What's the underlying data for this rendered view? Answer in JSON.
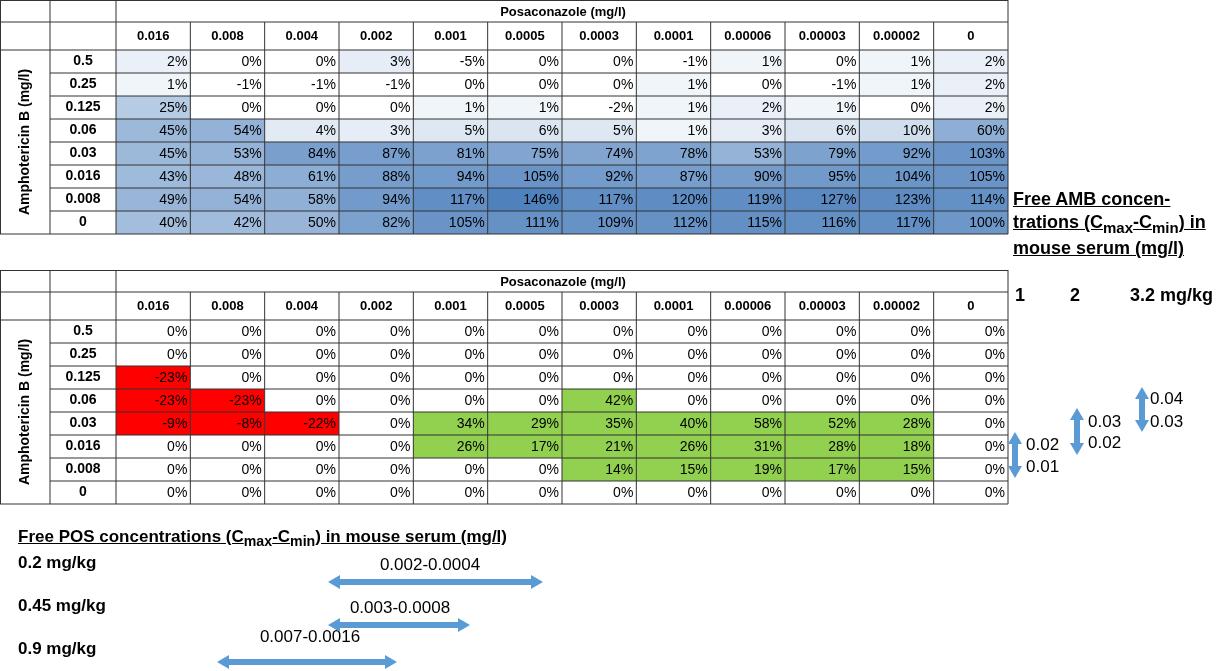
{
  "chart_data": [
    {
      "type": "heatmap",
      "xlabel": "Posaconazole (mg/l)",
      "ylabel": "Amphotericin B (mg/l)",
      "colors": [
        "#4f81bd"
      ],
      "categories": [
        "0.016",
        "0.008",
        "0.004",
        "0.002",
        "0.001",
        "0.0005",
        "0.0003",
        "0.0001",
        "0.00006",
        "0.00003",
        "0.00002",
        "0"
      ],
      "y_categories": [
        "0.5",
        "0.25",
        "0.125",
        "0.06",
        "0.03",
        "0.016",
        "0.008",
        "0"
      ],
      "cells": [
        [
          2,
          0,
          0,
          3,
          -5,
          0,
          0,
          -1,
          1,
          0,
          1,
          2
        ],
        [
          1,
          -1,
          -1,
          -1,
          0,
          0,
          0,
          1,
          0,
          -1,
          1,
          2
        ],
        [
          25,
          0,
          0,
          0,
          1,
          1,
          -2,
          1,
          2,
          1,
          0,
          2
        ],
        [
          45,
          54,
          4,
          3,
          5,
          6,
          5,
          1,
          3,
          6,
          10,
          60
        ],
        [
          45,
          53,
          84,
          87,
          81,
          75,
          74,
          78,
          53,
          79,
          92,
          103
        ],
        [
          43,
          48,
          61,
          88,
          94,
          105,
          92,
          87,
          90,
          95,
          104,
          105
        ],
        [
          49,
          54,
          58,
          94,
          117,
          146,
          117,
          120,
          119,
          127,
          123,
          114
        ],
        [
          40,
          42,
          50,
          82,
          105,
          111,
          109,
          112,
          115,
          116,
          117,
          100
        ]
      ],
      "cell_labels": [
        [
          "2%",
          "0%",
          "0%",
          "3%",
          "-5%",
          "0%",
          "0%",
          "-1%",
          "1%",
          "0%",
          "1%",
          "2%"
        ],
        [
          "1%",
          "-1%",
          "-1%",
          "-1%",
          "0%",
          "0%",
          "0%",
          "1%",
          "0%",
          "-1%",
          "1%",
          "2%"
        ],
        [
          "25%",
          "0%",
          "0%",
          "0%",
          "1%",
          "1%",
          "-2%",
          "1%",
          "2%",
          "1%",
          "0%",
          "2%"
        ],
        [
          "45%",
          "54%",
          "4%",
          "3%",
          "5%",
          "6%",
          "5%",
          "1%",
          "3%",
          "6%",
          "10%",
          "60%"
        ],
        [
          "45%",
          "53%",
          "84%",
          "87%",
          "81%",
          "75%",
          "74%",
          "78%",
          "53%",
          "79%",
          "92%",
          "103%"
        ],
        [
          "43%",
          "48%",
          "61%",
          "88%",
          "94%",
          "105%",
          "92%",
          "87%",
          "90%",
          "95%",
          "104%",
          "105%"
        ],
        [
          "49%",
          "54%",
          "58%",
          "94%",
          "117%",
          "146%",
          "117%",
          "120%",
          "119%",
          "127%",
          "123%",
          "114%"
        ],
        [
          "40%",
          "42%",
          "50%",
          "82%",
          "105%",
          "111%",
          "109%",
          "112%",
          "115%",
          "116%",
          "117%",
          "100%"
        ]
      ]
    },
    {
      "type": "heatmap",
      "xlabel": "Posaconazole (mg/l)",
      "ylabel": "Amphotericin B (mg/l)",
      "colors": [
        "#ff0000",
        "#92d050"
      ],
      "categories": [
        "0.016",
        "0.008",
        "0.004",
        "0.002",
        "0.001",
        "0.0005",
        "0.0003",
        "0.0001",
        "0.00006",
        "0.00003",
        "0.00002",
        "0"
      ],
      "y_categories": [
        "0.5",
        "0.25",
        "0.125",
        "0.06",
        "0.03",
        "0.016",
        "0.008",
        "0"
      ],
      "cells": [
        [
          0,
          0,
          0,
          0,
          0,
          0,
          0,
          0,
          0,
          0,
          0,
          0
        ],
        [
          0,
          0,
          0,
          0,
          0,
          0,
          0,
          0,
          0,
          0,
          0,
          0
        ],
        [
          -23,
          0,
          0,
          0,
          0,
          0,
          0,
          0,
          0,
          0,
          0,
          0
        ],
        [
          -23,
          -23,
          0,
          0,
          0,
          0,
          42,
          0,
          0,
          0,
          0,
          0
        ],
        [
          -9,
          -8,
          -22,
          0,
          34,
          29,
          35,
          40,
          58,
          52,
          28,
          0
        ],
        [
          0,
          0,
          0,
          0,
          26,
          17,
          21,
          26,
          31,
          28,
          18,
          0
        ],
        [
          0,
          0,
          0,
          0,
          0,
          0,
          14,
          15,
          19,
          17,
          15,
          0
        ],
        [
          0,
          0,
          0,
          0,
          0,
          0,
          0,
          0,
          0,
          0,
          0,
          0
        ]
      ],
      "cell_labels": [
        [
          "0%",
          "0%",
          "0%",
          "0%",
          "0%",
          "0%",
          "0%",
          "0%",
          "0%",
          "0%",
          "0%",
          "0%"
        ],
        [
          "0%",
          "0%",
          "0%",
          "0%",
          "0%",
          "0%",
          "0%",
          "0%",
          "0%",
          "0%",
          "0%",
          "0%"
        ],
        [
          "-23%",
          "0%",
          "0%",
          "0%",
          "0%",
          "0%",
          "0%",
          "0%",
          "0%",
          "0%",
          "0%",
          "0%"
        ],
        [
          "-23%",
          "-23%",
          "0%",
          "0%",
          "0%",
          "0%",
          "42%",
          "0%",
          "0%",
          "0%",
          "0%",
          "0%"
        ],
        [
          "-9%",
          "-8%",
          "-22%",
          "0%",
          "34%",
          "29%",
          "35%",
          "40%",
          "58%",
          "52%",
          "28%",
          "0%"
        ],
        [
          "0%",
          "0%",
          "0%",
          "0%",
          "26%",
          "17%",
          "21%",
          "26%",
          "31%",
          "28%",
          "18%",
          "0%"
        ],
        [
          "0%",
          "0%",
          "0%",
          "0%",
          "0%",
          "0%",
          "14%",
          "15%",
          "19%",
          "17%",
          "15%",
          "0%"
        ],
        [
          "0%",
          "0%",
          "0%",
          "0%",
          "0%",
          "0%",
          "0%",
          "0%",
          "0%",
          "0%",
          "0%",
          "0%"
        ]
      ],
      "annotations": [
        "Free AMB concen-trations (C$_{max}$-C$_{min}$) in mouse serum (mg/l)",
        "1",
        "2",
        "3.2 mg/kg",
        "0.02",
        "0.01",
        "0.03",
        "0.02",
        "0.04",
        "0.03",
        "Free POS concentrations (C$_{max}$-C$_{min}$) in mouse serum (mg/l)",
        "0.2 mg/kg",
        "0.002-0.0004",
        "0.45 mg/kg",
        "0.003-0.0008",
        "0.9 mg/kg",
        "0.007-0.0016"
      ]
    }
  ]
}
